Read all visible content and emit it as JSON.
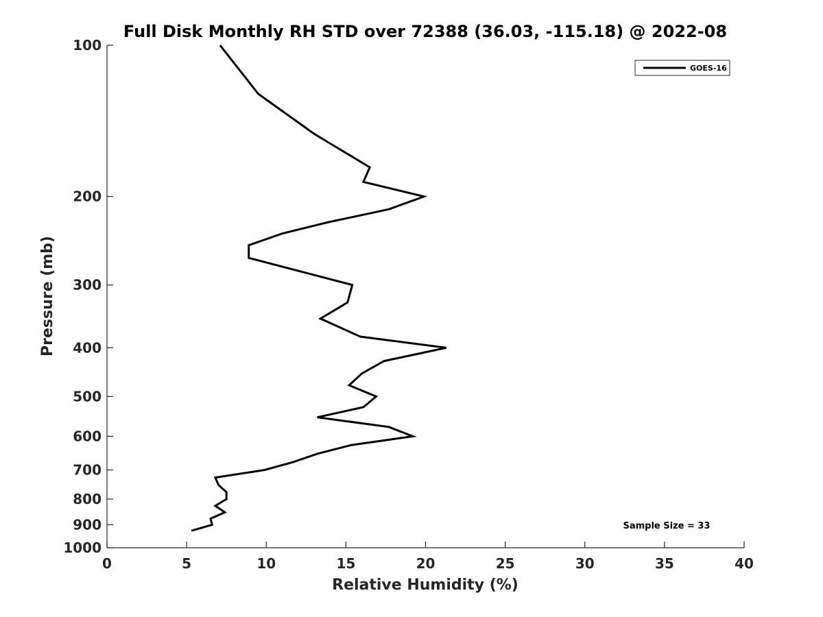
{
  "chart_data": {
    "type": "line",
    "title": "Full Disk Monthly RH STD over 72388 (36.03, -115.18) @ 2022-08",
    "xlabel": "Relative Humidity (%)",
    "ylabel": "Pressure (mb)",
    "xlim": [
      0,
      40
    ],
    "ylim": [
      100,
      1000
    ],
    "y_scale": "log",
    "y_reversed": true,
    "x_ticks": [
      0,
      5,
      10,
      15,
      20,
      25,
      30,
      35,
      40
    ],
    "x_tick_labels": [
      "0",
      "5",
      "10",
      "15",
      "20",
      "25",
      "30",
      "35",
      "40"
    ],
    "y_ticks": [
      100,
      200,
      300,
      400,
      500,
      600,
      700,
      800,
      900,
      1000
    ],
    "y_tick_labels": [
      "100",
      "200",
      "300",
      "400",
      "500",
      "600",
      "700",
      "800",
      "900",
      "1000"
    ],
    "grid": false,
    "legend_placement": "top-right",
    "annotation": "Sample Size = 33",
    "series": [
      {
        "name": "GOES-16",
        "color": "#000000",
        "points": [
          {
            "x": 7.1,
            "p": 100
          },
          {
            "x": 9.5,
            "p": 125
          },
          {
            "x": 13.0,
            "p": 150
          },
          {
            "x": 16.5,
            "p": 175
          },
          {
            "x": 16.1,
            "p": 187
          },
          {
            "x": 19.9,
            "p": 200
          },
          {
            "x": 17.7,
            "p": 212
          },
          {
            "x": 13.9,
            "p": 225
          },
          {
            "x": 11.0,
            "p": 237
          },
          {
            "x": 8.9,
            "p": 250
          },
          {
            "x": 8.9,
            "p": 265
          },
          {
            "x": 15.4,
            "p": 300
          },
          {
            "x": 15.1,
            "p": 325
          },
          {
            "x": 13.4,
            "p": 350
          },
          {
            "x": 15.9,
            "p": 380
          },
          {
            "x": 21.3,
            "p": 400
          },
          {
            "x": 17.4,
            "p": 425
          },
          {
            "x": 16.0,
            "p": 450
          },
          {
            "x": 15.2,
            "p": 475
          },
          {
            "x": 16.9,
            "p": 500
          },
          {
            "x": 16.1,
            "p": 525
          },
          {
            "x": 13.2,
            "p": 550
          },
          {
            "x": 17.7,
            "p": 575
          },
          {
            "x": 19.2,
            "p": 600
          },
          {
            "x": 15.3,
            "p": 625
          },
          {
            "x": 13.2,
            "p": 650
          },
          {
            "x": 11.7,
            "p": 675
          },
          {
            "x": 9.9,
            "p": 700
          },
          {
            "x": 6.8,
            "p": 725
          },
          {
            "x": 7.0,
            "p": 750
          },
          {
            "x": 7.5,
            "p": 775
          },
          {
            "x": 7.5,
            "p": 800
          },
          {
            "x": 6.8,
            "p": 825
          },
          {
            "x": 7.4,
            "p": 850
          },
          {
            "x": 6.5,
            "p": 875
          },
          {
            "x": 6.6,
            "p": 900
          },
          {
            "x": 5.3,
            "p": 925
          }
        ]
      }
    ]
  }
}
